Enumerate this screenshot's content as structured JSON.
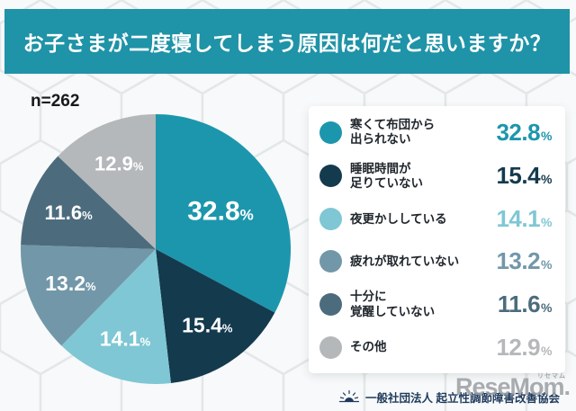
{
  "header": {
    "title": "お子さまが二度寝してしまう原因は何だと思いますか？",
    "bg_color": "#1f93a7"
  },
  "sample_label": "n=262",
  "chart_data": {
    "type": "pie",
    "title": "お子さまが二度寝してしまう原因は何だと思いますか？",
    "sample_size": "n=262",
    "start_angle_deg": 0,
    "direction": "clockwise",
    "legend_position": "right",
    "unit": "%",
    "labels": [
      "寒くて布団から\n出られない",
      "睡眠時間が\n足りていない",
      "夜更かししている",
      "疲れが取れていない",
      "十分に\n覚醒していない",
      "その他"
    ],
    "values": [
      32.8,
      15.4,
      14.1,
      13.2,
      11.6,
      12.9
    ],
    "display_values": [
      "32.8",
      "15.4",
      "14.1",
      "13.2",
      "11.6",
      "12.9"
    ],
    "colors": [
      "#1c96ad",
      "#143a4e",
      "#7fc7d4",
      "#7297a9",
      "#4c6c7d",
      "#b5b8ba"
    ]
  },
  "footer": {
    "org": "一般社団法人 起立性調節障害改善協会",
    "watermark": {
      "text": "ReseMom.",
      "ruby": "リセマム"
    }
  }
}
